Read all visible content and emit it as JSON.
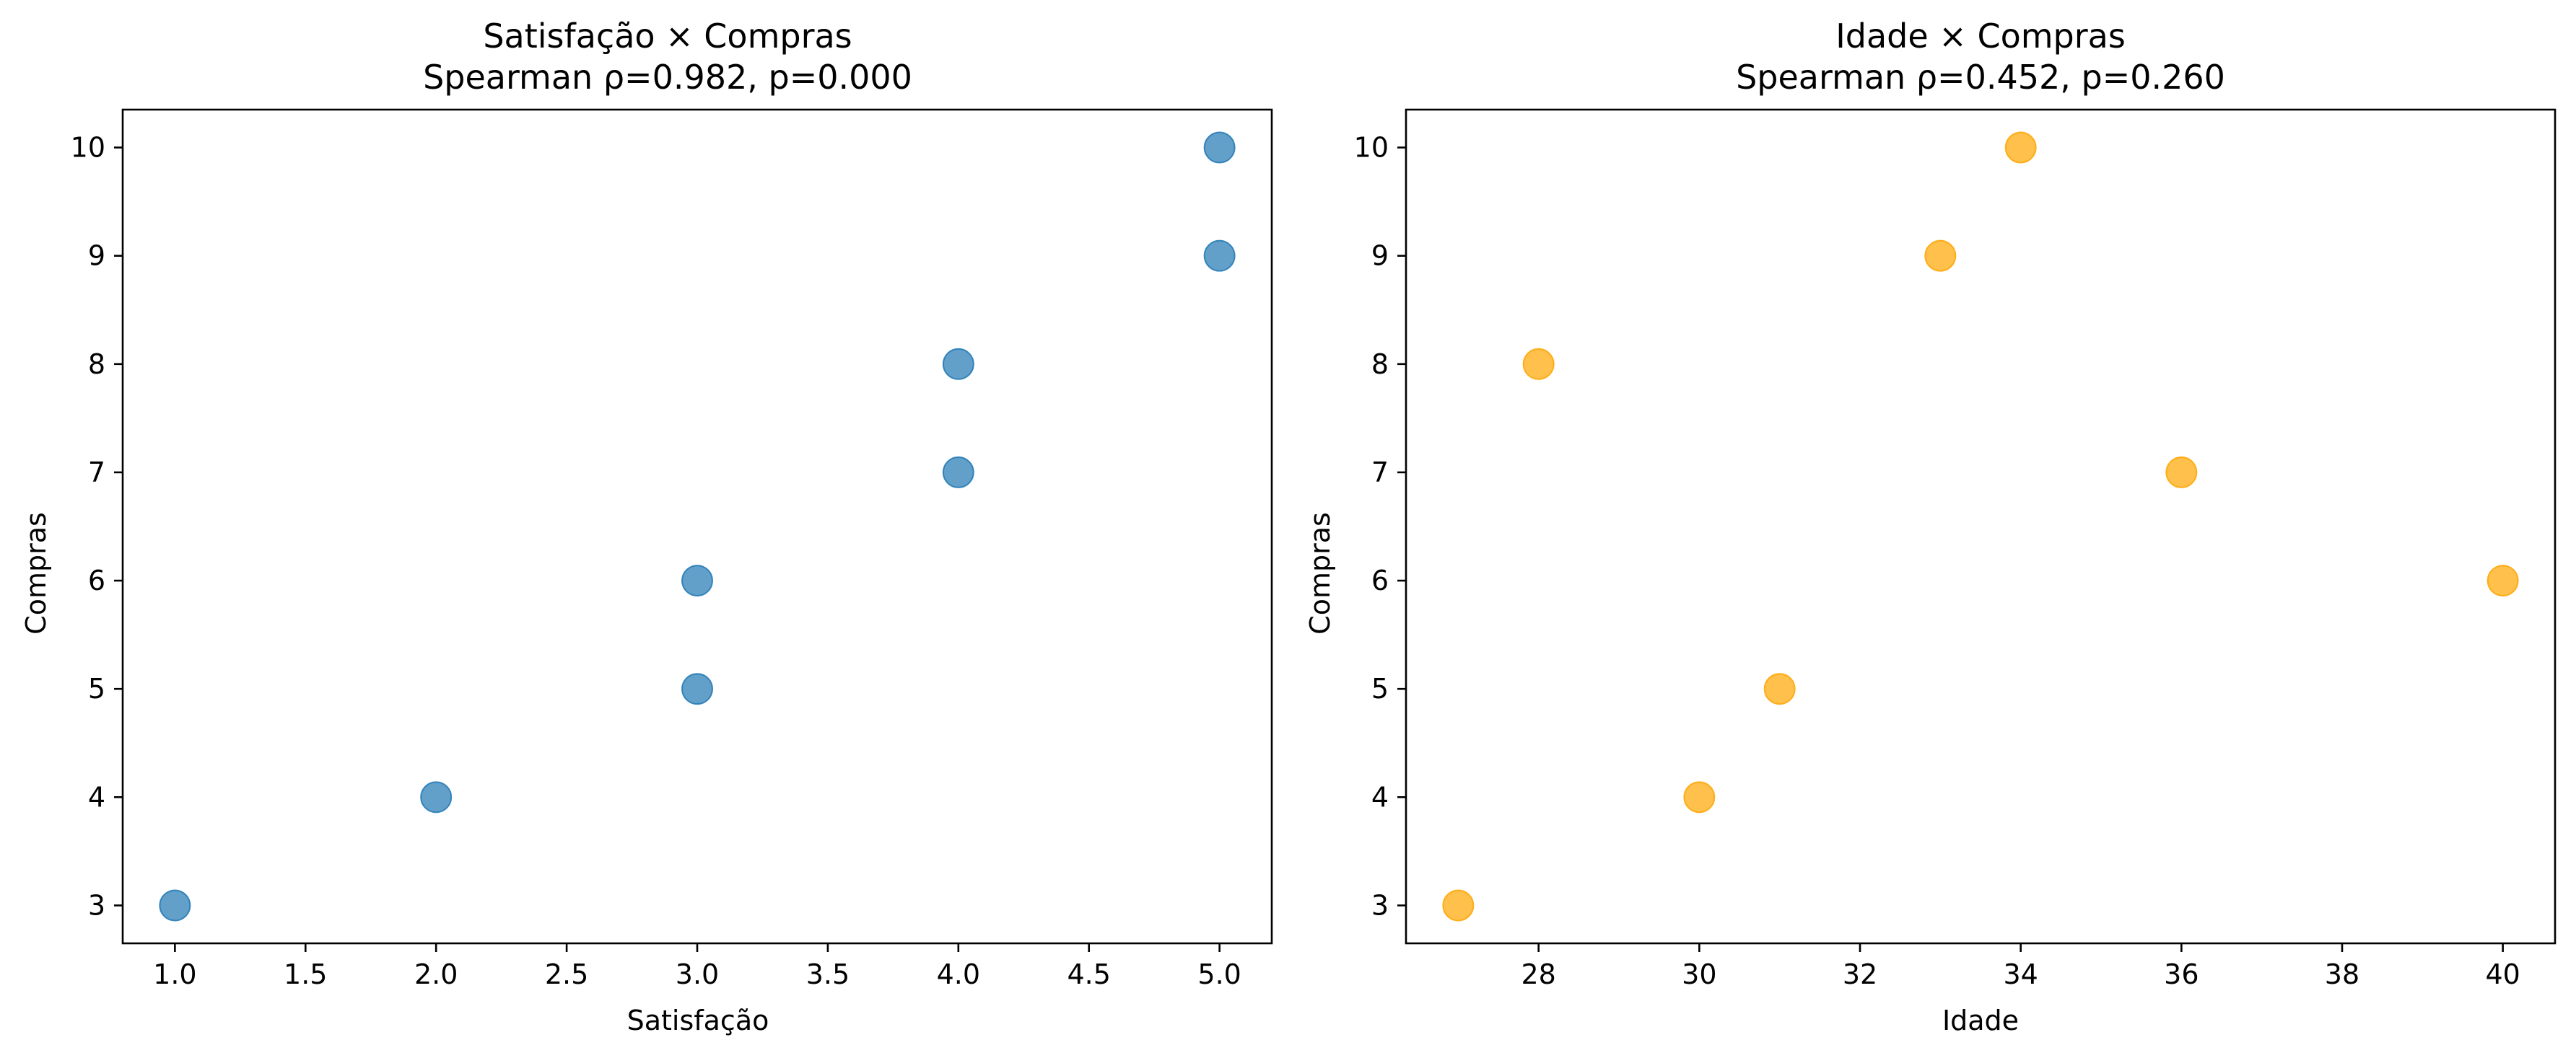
{
  "chart_data": [
    {
      "type": "scatter",
      "title": "Satisfação × Compras",
      "subtitle": "Spearman ρ=0.982, p=0.000",
      "xlabel": "Satisfação",
      "ylabel": "Compras",
      "x": [
        1,
        2,
        3,
        3,
        4,
        4,
        5,
        5
      ],
      "y": [
        3,
        4,
        5,
        6,
        7,
        8,
        9,
        10
      ],
      "xlim": [
        0.8,
        5.2
      ],
      "ylim": [
        2.65,
        10.35
      ],
      "xticks": [
        1.0,
        1.5,
        2.0,
        2.5,
        3.0,
        3.5,
        4.0,
        4.5,
        5.0
      ],
      "xtick_labels": [
        "1.0",
        "1.5",
        "2.0",
        "2.5",
        "3.0",
        "3.5",
        "4.0",
        "4.5",
        "5.0"
      ],
      "yticks": [
        3,
        4,
        5,
        6,
        7,
        8,
        9,
        10
      ],
      "ytick_labels": [
        "3",
        "4",
        "5",
        "6",
        "7",
        "8",
        "9",
        "10"
      ],
      "color": "#1f77b4",
      "grid": false,
      "legend": false
    },
    {
      "type": "scatter",
      "title": "Idade × Compras",
      "subtitle": "Spearman ρ=0.452, p=0.260",
      "xlabel": "Idade",
      "ylabel": "Compras",
      "x": [
        27,
        28,
        30,
        31,
        33,
        34,
        36,
        40
      ],
      "y": [
        3,
        8,
        4,
        5,
        9,
        10,
        7,
        6
      ],
      "xlim": [
        26.35,
        40.65
      ],
      "ylim": [
        2.65,
        10.35
      ],
      "xticks": [
        28,
        30,
        32,
        34,
        36,
        38,
        40
      ],
      "xtick_labels": [
        "28",
        "30",
        "32",
        "34",
        "36",
        "38",
        "40"
      ],
      "yticks": [
        3,
        4,
        5,
        6,
        7,
        8,
        9,
        10
      ],
      "ytick_labels": [
        "3",
        "4",
        "5",
        "6",
        "7",
        "8",
        "9",
        "10"
      ],
      "color": "#ffa500",
      "grid": false,
      "legend": false
    }
  ]
}
